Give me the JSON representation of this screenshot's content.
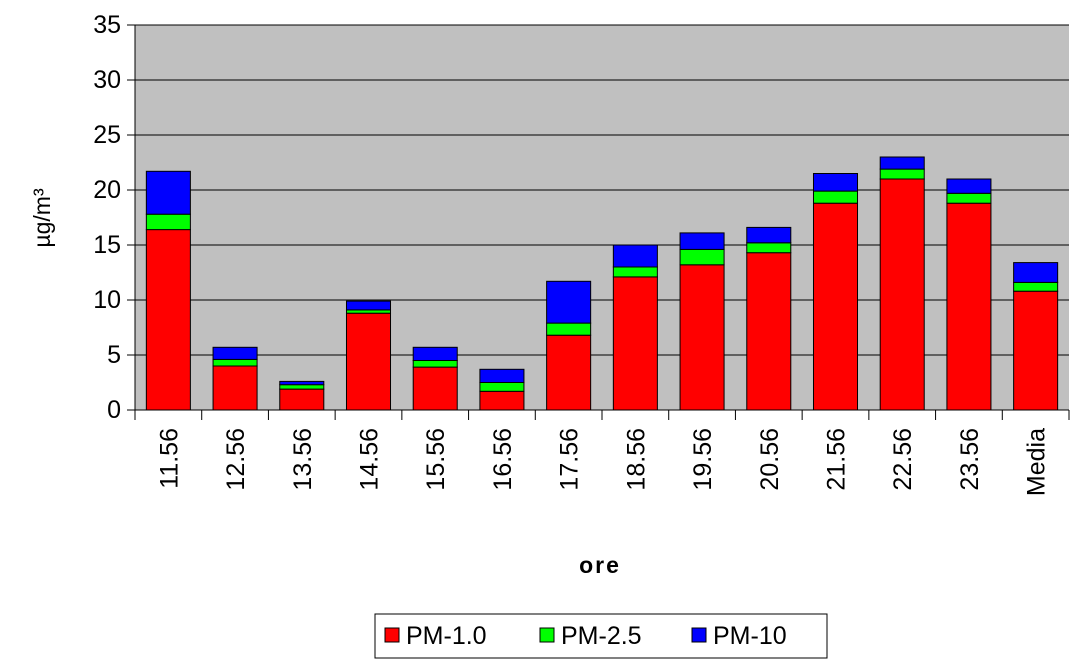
{
  "chart_data": {
    "type": "stacked_bar",
    "categories": [
      "11.56",
      "12.56",
      "13.56",
      "14.56",
      "15.56",
      "16.56",
      "17.56",
      "18.56",
      "19.56",
      "20.56",
      "21.56",
      "22.56",
      "23.56",
      "Media"
    ],
    "series": [
      {
        "name": "PM-1.0",
        "color": "#ff0000",
        "values": [
          16.4,
          4.0,
          1.9,
          8.8,
          3.9,
          1.7,
          6.8,
          12.1,
          13.2,
          14.3,
          18.8,
          21.0,
          18.8,
          10.8
        ]
      },
      {
        "name": "PM-2.5",
        "color": "#00ff00",
        "values": [
          1.4,
          0.6,
          0.4,
          0.3,
          0.6,
          0.8,
          1.1,
          0.9,
          1.4,
          0.9,
          1.1,
          0.9,
          0.9,
          0.8
        ]
      },
      {
        "name": "PM-10",
        "color": "#0000ff",
        "values": [
          3.9,
          1.1,
          0.3,
          0.8,
          1.2,
          1.2,
          3.8,
          2.0,
          1.5,
          1.4,
          1.6,
          1.1,
          1.3,
          1.8
        ]
      }
    ],
    "x_label": "ore",
    "y_label": "µg/m³",
    "ylim": [
      0,
      35
    ],
    "yticks": [
      0,
      5,
      10,
      15,
      20,
      25,
      30,
      35
    ],
    "grid": true,
    "legend": "bottom",
    "plot_background": "#c0c0c0"
  }
}
